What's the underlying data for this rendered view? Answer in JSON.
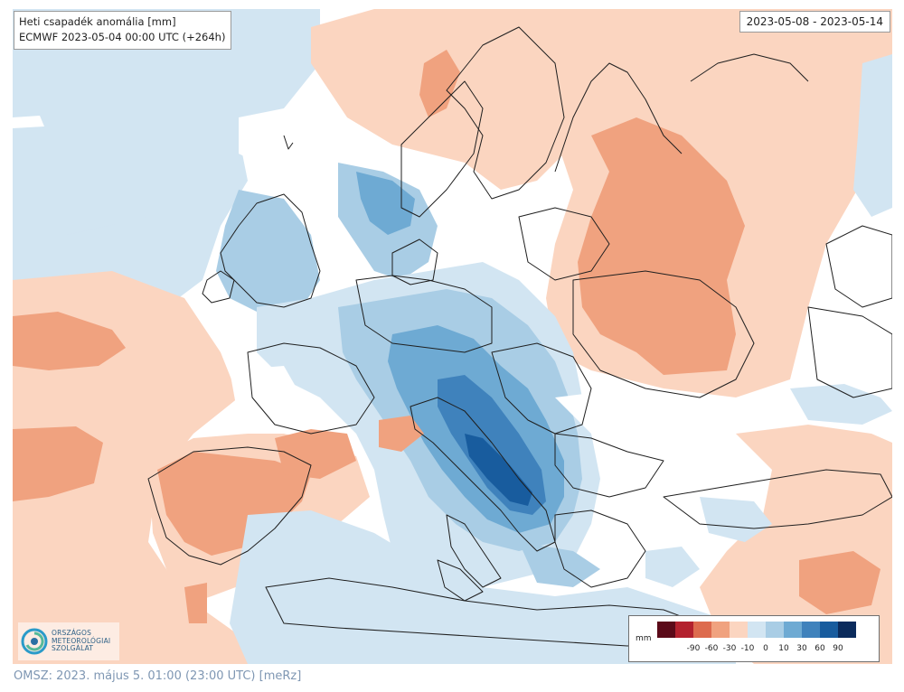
{
  "title": {
    "line1": "Heti csapadék anomália [mm]",
    "line2": "ECMWF 2023-05-04 00:00 UTC (+264h)"
  },
  "date_range": "2023-05-08 - 2023-05-14",
  "legend": {
    "unit": "mm",
    "colors": [
      "#5b0a19",
      "#b3212e",
      "#dd6b4e",
      "#f0a27f",
      "#fbd5c0",
      "#d2e5f2",
      "#a9cde5",
      "#6eaad3",
      "#3f82bc",
      "#185c9e",
      "#0b2b5c"
    ],
    "labels": [
      "-90",
      "-60",
      "-30",
      "-10",
      "0",
      "10",
      "30",
      "60",
      "90"
    ]
  },
  "logo": {
    "lines": [
      "ORSZÁGOS",
      "METEOROLÓGIAI",
      "SZOLGÁLAT"
    ]
  },
  "footer": "OMSZ: 2023. május 5. 01:00 (23:00  UTC)  [meRz]"
}
